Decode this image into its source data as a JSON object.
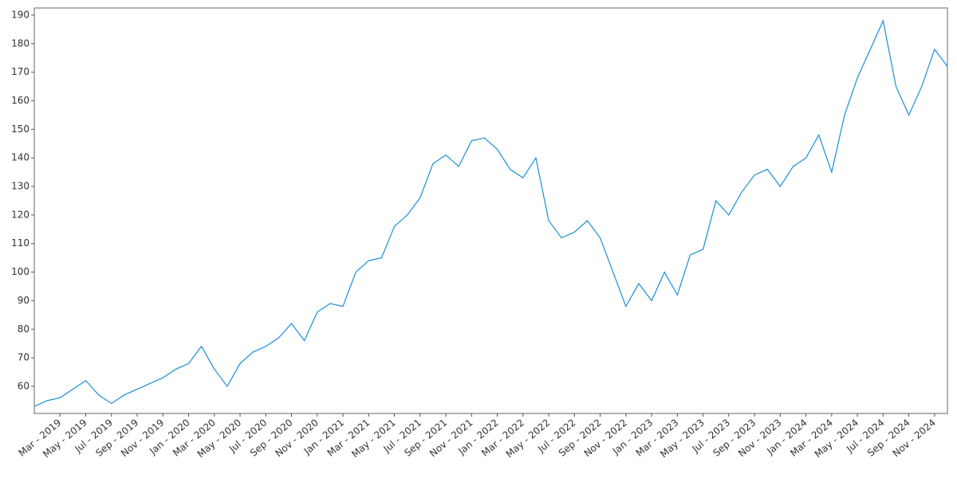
{
  "chart_data": {
    "type": "line",
    "x": [
      "2019-01",
      "2019-02",
      "2019-03",
      "2019-04",
      "2019-05",
      "2019-06",
      "2019-07",
      "2019-08",
      "2019-09",
      "2019-10",
      "2019-11",
      "2019-12",
      "2020-01",
      "2020-02",
      "2020-03",
      "2020-04",
      "2020-05",
      "2020-06",
      "2020-07",
      "2020-08",
      "2020-09",
      "2020-10",
      "2020-11",
      "2020-12",
      "2021-01",
      "2021-02",
      "2021-03",
      "2021-04",
      "2021-05",
      "2021-06",
      "2021-07",
      "2021-08",
      "2021-09",
      "2021-10",
      "2021-11",
      "2021-12",
      "2022-01",
      "2022-02",
      "2022-03",
      "2022-04",
      "2022-05",
      "2022-06",
      "2022-07",
      "2022-08",
      "2022-09",
      "2022-10",
      "2022-11",
      "2022-12",
      "2023-01",
      "2023-02",
      "2023-03",
      "2023-04",
      "2023-05",
      "2023-06",
      "2023-07",
      "2023-08",
      "2023-09",
      "2023-10",
      "2023-11",
      "2023-12",
      "2024-01",
      "2024-02",
      "2024-03",
      "2024-04",
      "2024-05",
      "2024-06",
      "2024-07",
      "2024-08",
      "2024-09",
      "2024-10",
      "2024-11",
      "2024-12"
    ],
    "series": [
      {
        "color": "#1a8fd6",
        "values": [
          53,
          55,
          56,
          59,
          62,
          57,
          54,
          57,
          59,
          61,
          63,
          66,
          68,
          74,
          66,
          60,
          68,
          72,
          74,
          77,
          82,
          76,
          86,
          89,
          88,
          100,
          104,
          105,
          116,
          120,
          126,
          138,
          141,
          137,
          146,
          147,
          143,
          136,
          133,
          140,
          118,
          112,
          114,
          118,
          112,
          100,
          88,
          96,
          90,
          100,
          92,
          106,
          108,
          125,
          120,
          128,
          134,
          136,
          130,
          137,
          140,
          148,
          135,
          155,
          168,
          178,
          188,
          165,
          155,
          165,
          178,
          172
        ]
      }
    ],
    "xlim": [
      "2019-01",
      "2024-12"
    ],
    "xticks": [
      {
        "value": "2019-03",
        "label": "Mar - 2019"
      },
      {
        "value": "2019-05",
        "label": "May - 2019"
      },
      {
        "value": "2019-07",
        "label": "Jul - 2019"
      },
      {
        "value": "2019-09",
        "label": "Sep - 2019"
      },
      {
        "value": "2019-11",
        "label": "Nov - 2019"
      },
      {
        "value": "2020-01",
        "label": "Jan - 2020"
      },
      {
        "value": "2020-03",
        "label": "Mar - 2020"
      },
      {
        "value": "2020-05",
        "label": "May - 2020"
      },
      {
        "value": "2020-07",
        "label": "Jul - 2020"
      },
      {
        "value": "2020-09",
        "label": "Sep - 2020"
      },
      {
        "value": "2020-11",
        "label": "Nov - 2020"
      },
      {
        "value": "2021-01",
        "label": "Jan - 2021"
      },
      {
        "value": "2021-03",
        "label": "Mar - 2021"
      },
      {
        "value": "2021-05",
        "label": "May - 2021"
      },
      {
        "value": "2021-07",
        "label": "Jul - 2021"
      },
      {
        "value": "2021-09",
        "label": "Sep - 2021"
      },
      {
        "value": "2021-11",
        "label": "Nov - 2021"
      },
      {
        "value": "2022-01",
        "label": "Jan - 2022"
      },
      {
        "value": "2022-03",
        "label": "Mar - 2022"
      },
      {
        "value": "2022-05",
        "label": "May - 2022"
      },
      {
        "value": "2022-07",
        "label": "Jul - 2022"
      },
      {
        "value": "2022-09",
        "label": "Sep - 2022"
      },
      {
        "value": "2022-11",
        "label": "Nov - 2022"
      },
      {
        "value": "2023-01",
        "label": "Jan - 2023"
      },
      {
        "value": "2023-03",
        "label": "Mar - 2023"
      },
      {
        "value": "2023-05",
        "label": "May - 2023"
      },
      {
        "value": "2023-07",
        "label": "Jul - 2023"
      },
      {
        "value": "2023-09",
        "label": "Sep - 2023"
      },
      {
        "value": "2023-11",
        "label": "Nov - 2023"
      },
      {
        "value": "2024-01",
        "label": "Jan - 2024"
      },
      {
        "value": "2024-03",
        "label": "Mar - 2024"
      },
      {
        "value": "2024-05",
        "label": "May - 2024"
      },
      {
        "value": "2024-07",
        "label": "Jul - 2024"
      },
      {
        "value": "2024-09",
        "label": "Sep - 2024"
      },
      {
        "value": "2024-11",
        "label": "Nov - 2024"
      }
    ],
    "ylim": [
      50.5,
      192.5
    ],
    "yticks": [
      60,
      70,
      80,
      90,
      100,
      110,
      120,
      130,
      140,
      150,
      160,
      170,
      180,
      190
    ],
    "grid": false
  }
}
